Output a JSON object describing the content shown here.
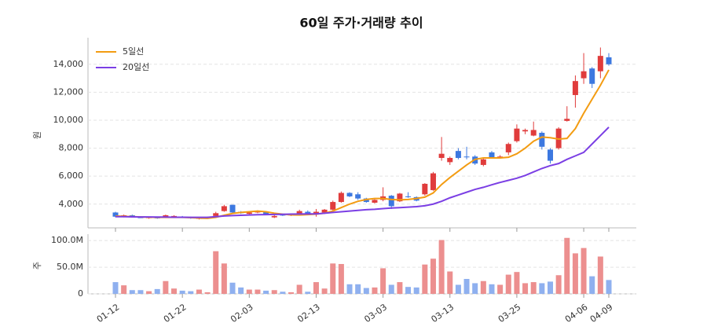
{
  "chart_data": [
    {
      "type": "candlestick",
      "title": "60일 주가·거래량 추이",
      "ylabel": "원",
      "open": [
        3400,
        3100,
        3200,
        3050,
        3000,
        3050,
        3050,
        3100,
        3100,
        3050,
        2950,
        3000,
        3150,
        3500,
        3950,
        3450,
        3300,
        3400,
        3450,
        3050,
        3250,
        3200,
        3250,
        3450,
        3250,
        3400,
        3600,
        4150,
        4800,
        4700,
        4400,
        4100,
        4300,
        4600,
        4200,
        4550,
        4500,
        4700,
        5000,
        7300,
        7000,
        7800,
        7400,
        7400,
        6800,
        7700,
        7350,
        7700,
        8500,
        9200,
        8900,
        9100,
        7900,
        8000,
        9950,
        11800,
        13000,
        13700,
        13500,
        14500
      ],
      "high": [
        3450,
        3250,
        3250,
        3100,
        3100,
        3100,
        3250,
        3200,
        3150,
        3100,
        3050,
        3100,
        3450,
        3950,
        3950,
        3500,
        3450,
        3550,
        3500,
        3250,
        3300,
        3300,
        3600,
        3550,
        3650,
        3650,
        4250,
        4900,
        4850,
        4850,
        4450,
        4350,
        5200,
        4650,
        4800,
        4850,
        4550,
        5500,
        6300,
        8800,
        7400,
        8000,
        8100,
        7500,
        7300,
        7800,
        7500,
        8400,
        9700,
        9400,
        9900,
        9200,
        8000,
        9500,
        11000,
        13200,
        14800,
        13800,
        15200,
        14800
      ],
      "low": [
        3050,
        3050,
        3050,
        3000,
        2950,
        2950,
        3000,
        3050,
        3000,
        2950,
        2900,
        2950,
        3100,
        3450,
        3350,
        3300,
        3250,
        3350,
        3200,
        3000,
        3150,
        3150,
        3200,
        3200,
        3100,
        3350,
        3550,
        4100,
        4500,
        4300,
        4100,
        4050,
        4200,
        3650,
        4150,
        4450,
        4200,
        4600,
        4950,
        7100,
        6800,
        7200,
        7200,
        6800,
        6700,
        7300,
        7250,
        7500,
        8400,
        9000,
        8850,
        7900,
        6900,
        7900,
        9900,
        10900,
        12600,
        12300,
        13000,
        13900
      ],
      "close": [
        3100,
        3200,
        3100,
        3000,
        3050,
        2980,
        3200,
        3150,
        3020,
        3000,
        3000,
        3050,
        3350,
        3850,
        3400,
        3350,
        3400,
        3500,
        3250,
        3150,
        3180,
        3250,
        3500,
        3250,
        3450,
        3600,
        4150,
        4800,
        4550,
        4400,
        4150,
        4300,
        4550,
        3850,
        4750,
        4500,
        4250,
        5450,
        6200,
        7600,
        7300,
        7300,
        7350,
        6900,
        7200,
        7350,
        7400,
        8300,
        9400,
        9300,
        9300,
        8100,
        7100,
        9400,
        10100,
        12800,
        13500,
        12600,
        14600,
        14000
      ],
      "up_color": "#e03c3c",
      "down_color": "#3c78e0",
      "series": [
        {
          "name": "5일선",
          "color": "#f39c12",
          "values": [
            3150,
            3120,
            3100,
            3080,
            3060,
            3050,
            3050,
            3060,
            3050,
            3030,
            3000,
            2980,
            3050,
            3200,
            3330,
            3400,
            3450,
            3500,
            3450,
            3350,
            3280,
            3230,
            3220,
            3250,
            3280,
            3350,
            3500,
            3750,
            4000,
            4200,
            4330,
            4400,
            4400,
            4330,
            4300,
            4330,
            4400,
            4500,
            4800,
            5400,
            5900,
            6350,
            6800,
            7200,
            7300,
            7300,
            7300,
            7350,
            7600,
            8000,
            8500,
            8800,
            8750,
            8650,
            8700,
            9400,
            10500,
            11500,
            12500,
            13600
          ]
        },
        {
          "name": "20일선",
          "color": "#7b3fe4",
          "values": [
            3100,
            3100,
            3090,
            3080,
            3080,
            3070,
            3070,
            3060,
            3060,
            3050,
            3050,
            3050,
            3100,
            3150,
            3180,
            3200,
            3220,
            3240,
            3250,
            3260,
            3270,
            3280,
            3290,
            3300,
            3300,
            3350,
            3400,
            3450,
            3500,
            3550,
            3600,
            3630,
            3680,
            3720,
            3750,
            3780,
            3820,
            3880,
            4000,
            4200,
            4450,
            4650,
            4850,
            5050,
            5200,
            5380,
            5550,
            5700,
            5850,
            6050,
            6300,
            6550,
            6750,
            6900,
            7200,
            7450,
            7700,
            8300,
            8900,
            9500
          ]
        }
      ],
      "ylim": [
        2300,
        15900
      ],
      "yticks": [
        {
          "value": 4000,
          "label": "4,000"
        },
        {
          "value": 6000,
          "label": "6,000"
        },
        {
          "value": 8000,
          "label": "8,000"
        },
        {
          "value": 10000,
          "label": "10,000"
        },
        {
          "value": 12000,
          "label": "12,000"
        },
        {
          "value": 14000,
          "label": "14,000"
        }
      ],
      "grid": true,
      "legend": "upper left"
    },
    {
      "type": "bar",
      "ylabel": "주",
      "categories": [
        "01-12",
        null,
        null,
        null,
        null,
        null,
        null,
        null,
        "01-22",
        null,
        null,
        null,
        null,
        null,
        null,
        null,
        "02-03",
        null,
        null,
        null,
        null,
        null,
        null,
        null,
        "02-13",
        null,
        null,
        null,
        null,
        null,
        null,
        null,
        "03-03",
        null,
        null,
        null,
        null,
        null,
        null,
        null,
        "03-13",
        null,
        null,
        null,
        null,
        null,
        null,
        null,
        "03-25",
        null,
        null,
        null,
        null,
        null,
        null,
        null,
        "04-06",
        null,
        null,
        "04-09"
      ],
      "values": [
        22000000,
        16000000,
        7000000,
        7000000,
        5000000,
        9000000,
        24000000,
        10000000,
        6000000,
        5000000,
        8000000,
        3000000,
        80000000,
        57000000,
        21000000,
        12000000,
        8000000,
        8000000,
        6000000,
        7000000,
        4000000,
        3000000,
        17000000,
        4000000,
        22000000,
        10000000,
        57000000,
        56000000,
        18000000,
        18000000,
        11000000,
        12000000,
        48000000,
        17000000,
        22000000,
        13000000,
        12000000,
        55000000,
        66000000,
        101000000,
        42000000,
        17000000,
        28000000,
        20000000,
        24000000,
        18000000,
        17000000,
        36000000,
        41000000,
        20000000,
        22000000,
        20000000,
        23000000,
        35000000,
        105000000,
        76000000,
        86000000,
        33000000,
        70000000,
        26000000
      ],
      "up_color": "#ec8f8f",
      "down_color": "#8fb0ef",
      "ylim": [
        0,
        112000000
      ],
      "yticks": [
        0,
        {
          "value": 50000000,
          "label": "50.0M"
        },
        {
          "value": 100000000,
          "label": "100.0M"
        }
      ],
      "grid": true
    }
  ]
}
